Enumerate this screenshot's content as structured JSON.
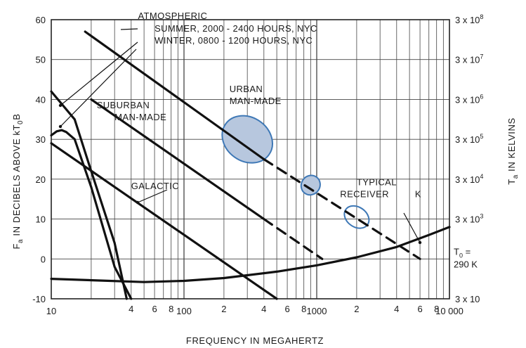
{
  "chart_data": {
    "type": "line",
    "xscale": "log",
    "xlim": [
      10,
      10000
    ],
    "ylim": [
      -10,
      60
    ],
    "xlabel": "FREQUENCY IN MEGAHERTZ",
    "ylabel_left": "F",
    "ylabel_left_sub1": "a",
    "ylabel_left_mid": " IN DECIBELS ABOVE kT",
    "ylabel_left_sub2": "0",
    "ylabel_left_end": "B",
    "ylabel_right": "T",
    "ylabel_right_sub": "a",
    "ylabel_right_end": " IN KELVINS",
    "grid": true,
    "x_major_ticks": [
      {
        "value": 10,
        "label": "10"
      },
      {
        "value": 100,
        "label": "100"
      },
      {
        "value": 1000,
        "label": "1000"
      },
      {
        "value": 10000,
        "label": "10 000"
      }
    ],
    "x_minor_ticks": [
      {
        "value": 20,
        "label": ""
      },
      {
        "value": 40,
        "label": "4"
      },
      {
        "value": 60,
        "label": "6"
      },
      {
        "value": 80,
        "label": "8"
      },
      {
        "value": 200,
        "label": "2"
      },
      {
        "value": 400,
        "label": "4"
      },
      {
        "value": 600,
        "label": "6"
      },
      {
        "value": 800,
        "label": "8"
      },
      {
        "value": 2000,
        "label": "2"
      },
      {
        "value": 4000,
        "label": "4"
      },
      {
        "value": 6000,
        "label": "6"
      },
      {
        "value": 8000,
        "label": "8"
      }
    ],
    "y_ticks": [
      {
        "value": 60,
        "label": "60"
      },
      {
        "value": 50,
        "label": "50"
      },
      {
        "value": 40,
        "label": "40"
      },
      {
        "value": 30,
        "label": "30"
      },
      {
        "value": 20,
        "label": "20"
      },
      {
        "value": 10,
        "label": "10"
      },
      {
        "value": 0,
        "label": "0"
      },
      {
        "value": -10,
        "label": "-10"
      }
    ],
    "right_ticks": [
      {
        "y": 60,
        "label": "3 x 10",
        "exp": "8"
      },
      {
        "y": 50,
        "label": "3 x 10",
        "exp": "7"
      },
      {
        "y": 40,
        "label": "3 x 10",
        "exp": "6"
      },
      {
        "y": 30,
        "label": "3 x 10",
        "exp": "5"
      },
      {
        "y": 20,
        "label": "3 x 10",
        "exp": "4"
      },
      {
        "y": 10,
        "label": "3 x 10",
        "exp": "3"
      },
      {
        "y": 0,
        "label": "T",
        "sub": "0",
        "label2": "=",
        "label3": "290 K"
      },
      {
        "y": -10,
        "label": "3 x 10",
        "exp": ""
      }
    ],
    "series": [
      {
        "name": "SUMMER, 2000 - 2400 HOURS, NYC",
        "dashed": false,
        "x": [
          10,
          11,
          12,
          13,
          15,
          20,
          30,
          40
        ],
        "y": [
          31,
          32,
          32.3,
          31.8,
          30,
          18,
          -2,
          -10
        ]
      },
      {
        "name": "WINTER, 0800 - 1200 HOURS, NYC",
        "dashed": false,
        "x": [
          10,
          15,
          20,
          30,
          37
        ],
        "y": [
          42,
          35,
          22,
          4,
          -10
        ]
      },
      {
        "name": "SUBURBAN MAN-MADE",
        "dashed": false,
        "x": [
          20,
          400
        ],
        "y": [
          40,
          10
        ]
      },
      {
        "name": "URBAN MAN-MADE",
        "dashed": false,
        "x": [
          18,
          400
        ],
        "y": [
          57,
          25
        ]
      },
      {
        "name": "URBAN MAN-MADE",
        "dashed": true,
        "x": [
          400,
          6000
        ],
        "y": [
          25,
          0
        ]
      },
      {
        "name": "SUBURBAN MAN-MADE",
        "dashed": true,
        "x": [
          400,
          1100
        ],
        "y": [
          10,
          0
        ]
      },
      {
        "name": "GALACTIC",
        "dashed": false,
        "x": [
          10,
          500
        ],
        "y": [
          29,
          -10
        ]
      },
      {
        "name": "TYPICAL RECEIVER",
        "dashed": false,
        "x": [
          10,
          50,
          100,
          200,
          500,
          1000,
          2000,
          4000,
          7000,
          10000
        ],
        "y": [
          -5,
          -5.8,
          -5.5,
          -4.8,
          -3.2,
          -1.6,
          0.4,
          3,
          6,
          8
        ]
      }
    ],
    "ellipses": [
      {
        "x": 300,
        "y": 30,
        "rx_decades": 0.2,
        "ry_db": 5.5,
        "filled": true
      },
      {
        "x": 900,
        "y": 18.5,
        "rx_decades": 0.07,
        "ry_db": 2.5,
        "filled": true
      },
      {
        "x": 2000,
        "y": 10.5,
        "rx_decades": 0.1,
        "ry_db": 2.5,
        "filled": false
      }
    ],
    "annotations": [
      {
        "text": "ATMOSPHERIC",
        "x": 45,
        "y": 60.2
      },
      {
        "text": "SUMMER, 2000 - 2400 HOURS, NYC",
        "x": 60,
        "y": 57
      },
      {
        "text": "WINTER, 0800 - 1200 HOURS, NYC",
        "x": 60,
        "y": 54
      },
      {
        "text": "SUBURBAN",
        "x": 22,
        "y": 37.8
      },
      {
        "text": "MAN-MADE",
        "x": 30,
        "y": 34.8
      },
      {
        "text": "URBAN",
        "x": 220,
        "y": 41.8
      },
      {
        "text": "MAN-MADE",
        "x": 220,
        "y": 38.8
      },
      {
        "text": "GALACTIC",
        "x": 40,
        "y": 17.5
      },
      {
        "text": "TYPICAL",
        "x": 2000,
        "y": 18.5
      },
      {
        "text": "RECEIVER",
        "x": 1500,
        "y": 15.5
      },
      {
        "text": "K",
        "x": 5500,
        "y": 15.5
      }
    ]
  }
}
